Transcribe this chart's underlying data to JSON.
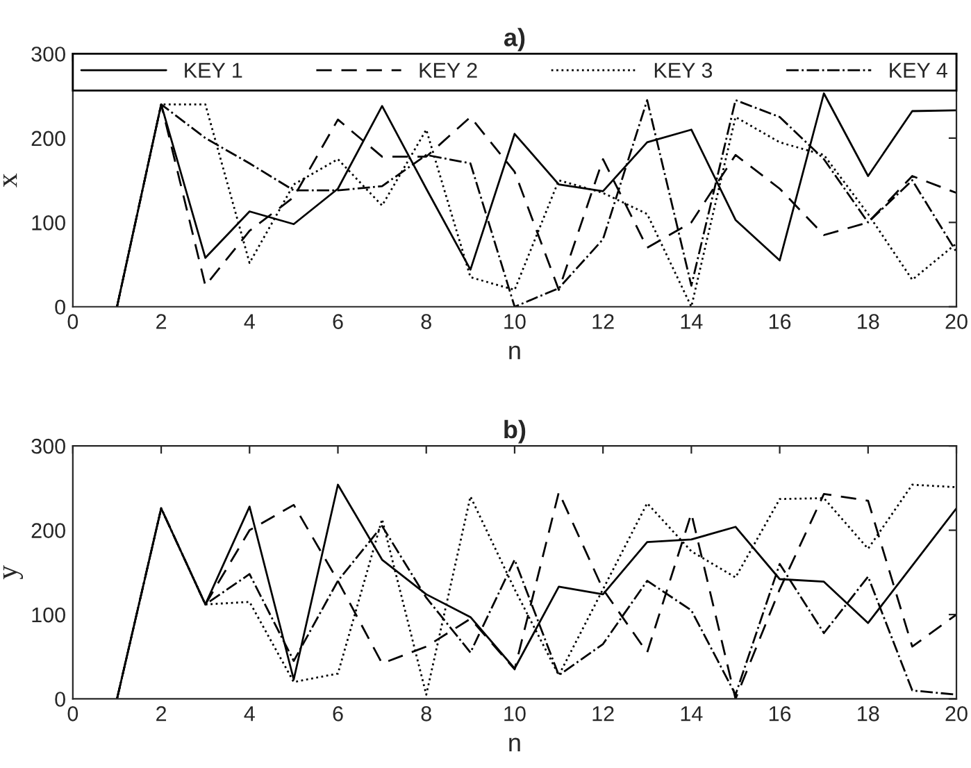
{
  "chart_data": [
    {
      "type": "line",
      "title": "a)",
      "xlabel": "n",
      "ylabel": "x",
      "x": [
        1,
        2,
        3,
        4,
        5,
        6,
        7,
        8,
        9,
        10,
        11,
        12,
        13,
        14,
        15,
        16,
        17,
        18,
        19,
        20
      ],
      "xlim": [
        0,
        20
      ],
      "xticks": [
        0,
        2,
        4,
        6,
        8,
        10,
        12,
        14,
        16,
        18,
        20
      ],
      "ylim": [
        0,
        300
      ],
      "yticks": [
        0,
        100,
        200,
        300
      ],
      "legend": "top",
      "grid": false,
      "series": [
        {
          "name": "KEY 1",
          "color": "#000000",
          "line_style": "solid",
          "values": [
            0,
            240,
            58,
            113,
            98,
            140,
            238,
            140,
            44,
            205,
            145,
            137,
            195,
            210,
            103,
            55,
            253,
            155,
            232,
            233
          ]
        },
        {
          "name": "KEY 2",
          "color": "#000000",
          "line_style": "dashed",
          "values": [
            0,
            240,
            25,
            90,
            130,
            222,
            178,
            178,
            225,
            160,
            20,
            175,
            70,
            100,
            180,
            140,
            85,
            100,
            155,
            135
          ]
        },
        {
          "name": "KEY 3",
          "color": "#000000",
          "line_style": "dotted",
          "values": [
            0,
            240,
            240,
            52,
            145,
            175,
            120,
            210,
            35,
            20,
            150,
            135,
            110,
            0,
            225,
            195,
            180,
            110,
            32,
            75
          ]
        },
        {
          "name": "KEY 4",
          "color": "#000000",
          "line_style": "dashdot",
          "values": [
            0,
            240,
            200,
            170,
            138,
            138,
            143,
            180,
            170,
            0,
            22,
            80,
            245,
            25,
            245,
            225,
            175,
            100,
            150,
            65
          ]
        }
      ]
    },
    {
      "type": "line",
      "title": "b)",
      "xlabel": "n",
      "ylabel": "y",
      "x": [
        1,
        2,
        3,
        4,
        5,
        6,
        7,
        8,
        9,
        10,
        11,
        12,
        13,
        14,
        15,
        16,
        17,
        18,
        19,
        20
      ],
      "xlim": [
        0,
        20
      ],
      "xticks": [
        0,
        2,
        4,
        6,
        8,
        10,
        12,
        14,
        16,
        18,
        20
      ],
      "ylim": [
        0,
        300
      ],
      "yticks": [
        0,
        100,
        200,
        300
      ],
      "grid": false,
      "series": [
        {
          "color": "#000000",
          "line_style": "solid",
          "values": [
            0,
            226,
            112,
            228,
            23,
            254,
            165,
            124,
            97,
            36,
            133,
            124,
            186,
            189,
            204,
            142,
            139,
            90,
            158,
            226
          ]
        },
        {
          "color": "#000000",
          "line_style": "dashed",
          "values": [
            0,
            226,
            112,
            200,
            230,
            140,
            42,
            62,
            95,
            35,
            245,
            130,
            55,
            220,
            0,
            130,
            243,
            235,
            62,
            100
          ]
        },
        {
          "color": "#000000",
          "line_style": "dotted",
          "values": [
            0,
            226,
            112,
            115,
            20,
            30,
            213,
            5,
            240,
            130,
            28,
            130,
            232,
            175,
            144,
            237,
            238,
            178,
            254,
            251
          ]
        },
        {
          "color": "#000000",
          "line_style": "dashdot",
          "values": [
            0,
            226,
            112,
            148,
            45,
            140,
            205,
            120,
            55,
            165,
            28,
            65,
            140,
            105,
            5,
            160,
            78,
            145,
            10,
            5
          ]
        }
      ]
    }
  ]
}
